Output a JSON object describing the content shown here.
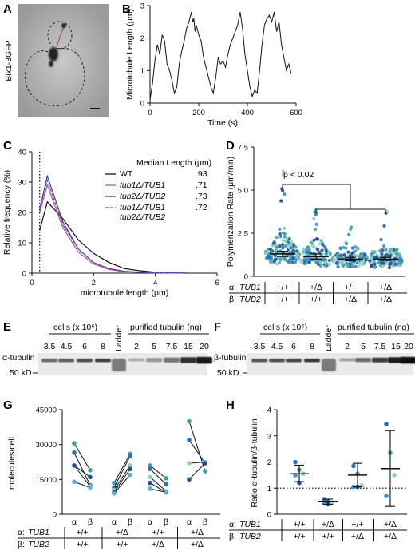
{
  "figure": {
    "panel_labels": [
      "A",
      "B",
      "C",
      "D",
      "E",
      "F",
      "G",
      "H"
    ]
  },
  "panel_a": {
    "channel_label": "Bik1-3GFP"
  },
  "panel_b": {
    "chart_data": {
      "type": "line",
      "xlabel": "Time (s)",
      "ylabel": "Microtubule Length (μm)",
      "xlim": [
        0,
        600
      ],
      "ylim": [
        0,
        3
      ],
      "xticks": [
        "0",
        "200",
        "400",
        "600"
      ],
      "yticks": [
        "0",
        "1",
        "2",
        "3"
      ],
      "x": [
        0,
        10,
        20,
        30,
        40,
        50,
        60,
        70,
        80,
        90,
        100,
        110,
        120,
        130,
        140,
        150,
        160,
        170,
        175,
        180,
        185,
        190,
        200,
        210,
        220,
        230,
        240,
        250,
        260,
        270,
        280,
        290,
        300,
        310,
        320,
        330,
        340,
        350,
        360,
        370,
        380,
        390,
        400,
        410,
        420,
        430,
        440,
        450,
        460,
        470,
        480,
        490,
        500,
        510,
        520,
        530,
        540,
        550,
        560,
        570,
        580
      ],
      "y": [
        0.1,
        0.6,
        1.3,
        1.8,
        1.5,
        2.1,
        1.9,
        1.2,
        1.0,
        0.7,
        0.3,
        0.5,
        1.2,
        1.6,
        1.9,
        2.3,
        2.5,
        2.8,
        2.5,
        2.6,
        2.2,
        2.4,
        2.1,
        1.9,
        1.4,
        1.1,
        0.8,
        0.5,
        0.3,
        0.8,
        1.4,
        1.2,
        1.3,
        1.1,
        1.5,
        1.8,
        2.0,
        2.2,
        2.4,
        2.8,
        2.3,
        1.5,
        1.0,
        0.5,
        0.2,
        0.4,
        0.3,
        1.0,
        1.8,
        2.4,
        2.6,
        2.7,
        2.5,
        2.8,
        2.2,
        2.5,
        1.8,
        1.4,
        1.0,
        1.2,
        0.9
      ]
    }
  },
  "panel_c": {
    "chart_data": {
      "type": "line",
      "xlabel": "microtubule length (μm)",
      "ylabel": "Relative frequency (%)",
      "xlim": [
        0,
        6
      ],
      "ylim": [
        0,
        40
      ],
      "xticks": [
        "0",
        "2",
        "4",
        "6"
      ],
      "yticks": [
        "0",
        "10",
        "20",
        "30",
        "40"
      ],
      "x": [
        0.25,
        0.5,
        1.0,
        1.5,
        2.0,
        2.5,
        3.0,
        3.5,
        4.0,
        4.5,
        5.0
      ],
      "cutoff_x": 0.25,
      "legend_title": "Median Length (μm)",
      "series": [
        {
          "name": "WT",
          "median": ".93",
          "color": "#111111",
          "dash": "",
          "values": [
            14,
            23.5,
            18,
            11,
            6.5,
            3.5,
            1.5,
            0.8,
            0.3,
            0.1,
            0
          ]
        },
        {
          "name": "tub1Δ/TUB1",
          "median": ".71",
          "color": "#c64a9a",
          "dash": "",
          "values": [
            20,
            29,
            15,
            7,
            3,
            1.2,
            0.5,
            0.3,
            0.2,
            0.1,
            0
          ]
        },
        {
          "name": "tub2Δ/TUB2",
          "median": ".73",
          "color": "#3a3fa8",
          "dash": "",
          "values": [
            21,
            32,
            17,
            8,
            3.5,
            1.5,
            0.6,
            0.3,
            0.1,
            0.1,
            0
          ]
        },
        {
          "name": "tub1Δ/TUB1 tub2Δ/TUB2",
          "median": ".72",
          "name_line1": "tub1Δ/TUB1",
          "name_line2": "tub2Δ/TUB2",
          "color": "#5a5aa8",
          "dash": "4,2",
          "values": [
            21,
            30.5,
            16,
            8,
            3.5,
            1.5,
            0.6,
            0.3,
            0.1,
            0.1,
            0
          ]
        }
      ]
    }
  },
  "panel_d": {
    "chart_data": {
      "type": "scatter",
      "ylabel": "Polymerization Rate (μm/min)",
      "ylim": [
        0,
        7.5
      ],
      "yticks": [
        "0",
        "2.5",
        "5.0",
        "7.5"
      ],
      "annotation": "p < 0.02",
      "groups": [
        {
          "tub1": "+/+",
          "tub2": "+/+",
          "median": 1.3,
          "ci": [
            1.15,
            1.45
          ],
          "color": "#4a9fae"
        },
        {
          "tub1": "+/Δ",
          "tub2": "+/+",
          "median": 1.15,
          "ci": [
            1.0,
            1.3
          ],
          "color": "#3a8fb0"
        },
        {
          "tub1": "+/+",
          "tub2": "+/Δ",
          "median": 1.0,
          "ci": [
            0.9,
            1.1
          ],
          "color": "#2f6eb0"
        },
        {
          "tub1": "+/Δ",
          "tub2": "+/Δ",
          "median": 1.0,
          "ci": [
            0.92,
            1.1
          ],
          "color": "#2a55a0"
        }
      ]
    },
    "genotype_rows": [
      {
        "prefix": "α:",
        "gene": "TUB1"
      },
      {
        "prefix": "β:",
        "gene": "TUB2"
      }
    ]
  },
  "panel_e": {
    "header_cells": "cells (x 10⁶)",
    "header_ladder": "Ladder",
    "header_purified": "purified tubulin (ng)",
    "cell_lanes": [
      "3.5",
      "4.5",
      "6",
      "8"
    ],
    "purified_lanes": [
      "2",
      "5",
      "7.5",
      "15",
      "20"
    ],
    "protein_label": "α-tubulin",
    "marker_label": "50 kD"
  },
  "panel_f": {
    "header_cells": "cells (x 10⁶)",
    "header_ladder": "Ladder",
    "header_purified": "purified tubulin (ng)",
    "cell_lanes": [
      "3.5",
      "4.5",
      "6",
      "8"
    ],
    "purified_lanes": [
      "2",
      "5",
      "7.5",
      "15",
      "20"
    ],
    "protein_label": "β-tubulin",
    "marker_label": "50 kD"
  },
  "panel_g": {
    "chart_data": {
      "type": "scatter",
      "ylabel": "molecules/cell",
      "ylim": [
        0,
        45000
      ],
      "yticks": [
        "0",
        "15000",
        "30000",
        "45000"
      ],
      "pair_labels": [
        "α",
        "β"
      ],
      "groups": [
        {
          "tub1": "+/+",
          "tub2": "+/+",
          "pairs": [
            [
              30500,
              19000
            ],
            [
              26500,
              12500
            ],
            [
              21000,
              12000
            ],
            [
              21000,
              16000
            ],
            [
              14000,
              11500
            ]
          ]
        },
        {
          "tub1": "+/Δ",
          "tub2": "+/+",
          "pairs": [
            [
              13500,
              26000
            ],
            [
              11500,
              25000
            ],
            [
              10500,
              21000
            ],
            [
              9500,
              19500
            ],
            [
              9000,
              17000
            ]
          ]
        },
        {
          "tub1": "+/+",
          "tub2": "+/Δ",
          "pairs": [
            [
              21000,
              15500
            ],
            [
              19500,
              13000
            ],
            [
              16000,
              10000
            ],
            [
              13500,
              9500
            ],
            [
              11000,
              9500
            ]
          ]
        },
        {
          "tub1": "+/Δ",
          "tub2": "+/Δ",
          "pairs": [
            [
              40000,
              18500
            ],
            [
              32000,
              22000
            ],
            [
              22000,
              22500
            ],
            [
              15000,
              22000
            ]
          ]
        }
      ]
    },
    "genotype_rows": [
      {
        "prefix": "α:",
        "gene": "TUB1"
      },
      {
        "prefix": "β:",
        "gene": "TUB2"
      }
    ]
  },
  "panel_h": {
    "chart_data": {
      "type": "scatter",
      "ylabel": "Ratio α-tubulin/β-tubulin",
      "ylim": [
        0,
        4
      ],
      "yticks": [
        "0",
        "1",
        "2",
        "3",
        "4"
      ],
      "reference_line": 1,
      "groups": [
        {
          "tub1": "+/+",
          "tub2": "+/+",
          "mean": 1.55,
          "sd": [
            1.25,
            1.88
          ],
          "points": [
            2.0,
            1.7,
            1.55,
            1.5,
            1.2
          ]
        },
        {
          "tub1": "+/Δ",
          "tub2": "+/+",
          "mean": 0.48,
          "sd": [
            0.38,
            0.58
          ],
          "points": [
            0.55,
            0.5,
            0.45,
            0.42,
            0.38
          ]
        },
        {
          "tub1": "+/+",
          "tub2": "+/Δ",
          "mean": 1.5,
          "sd": [
            1.05,
            1.95
          ],
          "points": [
            1.85,
            1.55,
            1.1,
            1.05,
            1.05
          ]
        },
        {
          "tub1": "+/Δ",
          "tub2": "+/Δ",
          "mean": 1.75,
          "sd": [
            0.3,
            3.2
          ],
          "points": [
            3.45,
            2.35,
            1.5,
            0.7
          ]
        }
      ]
    },
    "genotype_rows": [
      {
        "prefix": "α:",
        "gene": "TUB1"
      },
      {
        "prefix": "β:",
        "gene": "TUB2"
      }
    ]
  }
}
